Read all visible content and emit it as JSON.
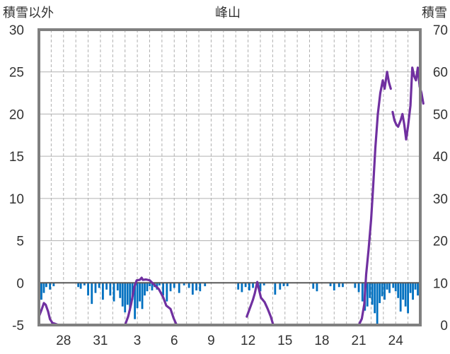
{
  "chart_data": {
    "type": "line+bar",
    "title": "峰山",
    "ylabel_left": "積雪以外",
    "ylabel_right": "積雪",
    "left_axis": {
      "ylim": [
        -5,
        30
      ],
      "ticks": [
        "30",
        "25",
        "20",
        "15",
        "10",
        "5",
        "0",
        "-5"
      ]
    },
    "right_axis": {
      "ylim": [
        0,
        70
      ],
      "ticks": [
        "70",
        "60",
        "50",
        "40",
        "30",
        "20",
        "10",
        "0"
      ]
    },
    "x_tick_labels": [
      "28",
      "31",
      "3",
      "6",
      "9",
      "12",
      "15",
      "18",
      "21",
      "24"
    ],
    "x_tick_days": [
      2,
      5,
      8,
      11,
      14,
      17,
      20,
      23,
      26,
      29
    ],
    "x_range_days": [
      0,
      31
    ],
    "grid": {
      "vertical_dashed": true,
      "horizontal_solid": true
    },
    "series": [
      {
        "axis": "left",
        "kind": "bar",
        "color": "#0070c0",
        "points": [
          [
            0.2,
            -2
          ],
          [
            0.4,
            -1.2
          ],
          [
            0.6,
            -0.5
          ],
          [
            0.9,
            -0.8
          ],
          [
            1.2,
            -0.4
          ],
          [
            3.2,
            -0.5
          ],
          [
            3.4,
            -0.7
          ],
          [
            3.7,
            -0.3
          ],
          [
            4.0,
            -1.5
          ],
          [
            4.3,
            -2.5
          ],
          [
            4.6,
            -1.2
          ],
          [
            4.9,
            -0.6
          ],
          [
            5.2,
            -2.0
          ],
          [
            5.5,
            -0.8
          ],
          [
            5.8,
            -1.5
          ],
          [
            6.1,
            -2.2
          ],
          [
            6.4,
            -0.9
          ],
          [
            6.6,
            -1.8
          ],
          [
            6.8,
            -2.8
          ],
          [
            7.0,
            -3.5
          ],
          [
            7.2,
            -2.6
          ],
          [
            7.4,
            -3.3
          ],
          [
            7.6,
            -2.0
          ],
          [
            7.8,
            -4.3
          ],
          [
            8.0,
            -3.0
          ],
          [
            8.2,
            -2.2
          ],
          [
            8.4,
            -3.1
          ],
          [
            8.6,
            -1.5
          ],
          [
            8.8,
            -1.0
          ],
          [
            9.0,
            -0.4
          ],
          [
            9.2,
            -0.9
          ],
          [
            9.4,
            -0.5
          ],
          [
            9.6,
            -0.8
          ],
          [
            9.8,
            -0.3
          ],
          [
            10.1,
            -1.5
          ],
          [
            10.4,
            -2.2
          ],
          [
            10.7,
            -1.0
          ],
          [
            11.0,
            -0.6
          ],
          [
            11.4,
            -1.2
          ],
          [
            11.8,
            -0.3
          ],
          [
            12.2,
            -0.6
          ],
          [
            12.5,
            -1.4
          ],
          [
            12.8,
            -0.9
          ],
          [
            13.1,
            -1.0
          ],
          [
            13.5,
            -0.4
          ],
          [
            16.2,
            -0.8
          ],
          [
            16.5,
            -1.1
          ],
          [
            16.8,
            -0.5
          ],
          [
            17.1,
            -0.9
          ],
          [
            17.4,
            -0.6
          ],
          [
            17.8,
            -0.3
          ],
          [
            18.0,
            -1.0
          ],
          [
            18.3,
            -0.3
          ],
          [
            19.2,
            -1.4
          ],
          [
            19.6,
            -0.8
          ],
          [
            19.9,
            -0.4
          ],
          [
            20.2,
            -0.4
          ],
          [
            22.3,
            -0.7
          ],
          [
            22.6,
            -1.0
          ],
          [
            23.7,
            -0.4
          ],
          [
            24.0,
            -0.9
          ],
          [
            24.4,
            -0.5
          ],
          [
            24.7,
            -0.5
          ],
          [
            25.7,
            -0.6
          ],
          [
            26.0,
            -1.1
          ],
          [
            26.3,
            -2.2
          ],
          [
            26.5,
            -3.3
          ],
          [
            26.7,
            -2.8
          ],
          [
            26.9,
            -1.8
          ],
          [
            27.1,
            -2.6
          ],
          [
            27.3,
            -3.6
          ],
          [
            27.5,
            -5.0
          ],
          [
            27.7,
            -2.4
          ],
          [
            27.9,
            -1.6
          ],
          [
            28.1,
            -2.0
          ],
          [
            28.3,
            -0.8
          ],
          [
            28.5,
            -1.2
          ],
          [
            28.8,
            -0.6
          ],
          [
            29.0,
            -1.0
          ],
          [
            29.2,
            -1.8
          ],
          [
            29.4,
            -3.4
          ],
          [
            29.6,
            -2.0
          ],
          [
            29.8,
            -2.8
          ],
          [
            30.0,
            -3.6
          ],
          [
            30.2,
            -1.2
          ],
          [
            30.4,
            -2.0
          ],
          [
            30.6,
            -0.8
          ],
          [
            30.8,
            -1.5
          ],
          [
            31.0,
            -0.6
          ]
        ]
      },
      {
        "axis": "right",
        "kind": "line",
        "color": "#7030a0",
        "segments": [
          [
            [
              0.0,
              2
            ],
            [
              0.2,
              3.5
            ],
            [
              0.4,
              5.2
            ],
            [
              0.55,
              4.8
            ],
            [
              0.75,
              3.2
            ],
            [
              0.9,
              1.4
            ],
            [
              1.1,
              0.5
            ],
            [
              1.3,
              0.3
            ],
            [
              1.6,
              0
            ],
            [
              7.0,
              0
            ],
            [
              7.25,
              2
            ],
            [
              7.5,
              5
            ],
            [
              7.75,
              9
            ],
            [
              7.95,
              10.6
            ],
            [
              8.2,
              10.7
            ],
            [
              8.35,
              11.2
            ],
            [
              8.45,
              10.7
            ],
            [
              8.7,
              10.8
            ],
            [
              9.0,
              10.6
            ],
            [
              9.35,
              9.6
            ],
            [
              9.75,
              8.5
            ],
            [
              10.1,
              6.6
            ],
            [
              10.35,
              4.6
            ],
            [
              10.7,
              3.8
            ],
            [
              10.95,
              1.6
            ],
            [
              11.2,
              0
            ],
            [
              17.2,
              0
            ]
          ],
          [
            [
              16.9,
              2
            ],
            [
              17.15,
              4
            ],
            [
              17.4,
              6
            ],
            [
              17.55,
              7.5
            ],
            [
              17.75,
              10.2
            ],
            [
              17.9,
              8.3
            ],
            [
              18.05,
              6.5
            ],
            [
              18.35,
              5.4
            ],
            [
              18.6,
              3.8
            ],
            [
              18.85,
              2
            ],
            [
              19.05,
              0
            ],
            [
              26.0,
              0
            ],
            [
              26.25,
              1.5
            ],
            [
              26.45,
              5
            ],
            [
              26.6,
              12
            ],
            [
              26.8,
              18
            ],
            [
              27.0,
              25
            ],
            [
              27.15,
              32
            ],
            [
              27.35,
              42
            ],
            [
              27.55,
              50
            ],
            [
              27.75,
              55
            ],
            [
              27.95,
              58
            ],
            [
              28.1,
              56
            ],
            [
              28.3,
              60
            ],
            [
              28.45,
              57.5
            ],
            [
              28.6,
              56
            ]
          ],
          [
            [
              28.75,
              50.5
            ],
            [
              28.9,
              48.5
            ],
            [
              29.05,
              47.5
            ],
            [
              29.2,
              47
            ],
            [
              29.4,
              48.5
            ],
            [
              29.55,
              50
            ],
            [
              29.7,
              47.5
            ],
            [
              29.85,
              44
            ],
            [
              30.0,
              47
            ],
            [
              30.2,
              52
            ],
            [
              30.35,
              61
            ],
            [
              30.5,
              59
            ],
            [
              30.65,
              58
            ],
            [
              30.8,
              61
            ],
            [
              30.95,
              56.5
            ],
            [
              31.1,
              55
            ],
            [
              31.25,
              52.5
            ]
          ]
        ]
      }
    ],
    "colors": {
      "frame": "#808080",
      "zero_line": "#595959",
      "grid": "#b0b0b0",
      "bars": "#0070c0",
      "line": "#7030a0"
    }
  }
}
